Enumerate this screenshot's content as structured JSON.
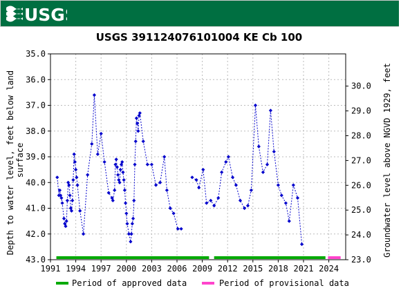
{
  "header": {
    "logo_text": "USGS",
    "bg_color": "#006f41"
  },
  "chart_data": {
    "type": "scatter",
    "title": "USGS 391124076101004 KE Cb 100",
    "ylabel": "Depth to water level, feet below land surface",
    "ylabel_lines": [
      "Depth to water level, feet below land",
      "surface"
    ],
    "y2label": "Groundwater level above NGVD 1929, feet",
    "ylim": [
      35.0,
      43.0
    ],
    "y_inverted": true,
    "y2lim": [
      31.3,
      23.0
    ],
    "xlim": [
      1991.0,
      2026.0
    ],
    "x_ticks": [
      "1991",
      "1994",
      "1997",
      "2000",
      "2003",
      "2006",
      "2009",
      "2012",
      "2015",
      "2018",
      "2021",
      "2024"
    ],
    "y_ticks": [
      "35.0",
      "36.0",
      "37.0",
      "38.0",
      "39.0",
      "40.0",
      "41.0",
      "42.0",
      "43.0"
    ],
    "y2_ticks": [
      "30.0",
      "29.0",
      "28.0",
      "27.0",
      "26.0",
      "25.0",
      "24.0",
      "23.0"
    ],
    "grid": true,
    "series": [
      {
        "color": "#0000cc",
        "segments": [
          [
            [
              1991.8,
              39.8
            ],
            [
              1992.0,
              40.5
            ],
            [
              1992.1,
              40.3
            ],
            [
              1992.2,
              40.5
            ],
            [
              1992.3,
              40.6
            ],
            [
              1992.4,
              40.8
            ],
            [
              1992.6,
              41.4
            ],
            [
              1992.7,
              41.6
            ],
            [
              1992.8,
              41.7
            ],
            [
              1992.9,
              41.5
            ],
            [
              1993.0,
              40.7
            ],
            [
              1993.1,
              40.0
            ],
            [
              1993.2,
              40.1
            ],
            [
              1993.3,
              40.5
            ],
            [
              1993.4,
              41.0
            ],
            [
              1993.5,
              41.1
            ],
            [
              1993.6,
              40.7
            ],
            [
              1993.7,
              39.9
            ],
            [
              1993.8,
              38.9
            ],
            [
              1993.9,
              39.2
            ],
            [
              1994.0,
              39.5
            ],
            [
              1994.1,
              39.8
            ],
            [
              1994.2,
              40.1
            ],
            [
              1994.5,
              41.1
            ],
            [
              1994.9,
              42.0
            ],
            [
              1995.4,
              39.7
            ],
            [
              1995.9,
              38.5
            ],
            [
              1996.2,
              36.6
            ],
            [
              1996.6,
              38.9
            ],
            [
              1997.0,
              38.1
            ],
            [
              1997.4,
              39.2
            ],
            [
              1997.9,
              40.4
            ],
            [
              1998.3,
              40.6
            ],
            [
              1998.4,
              40.7
            ],
            [
              1998.6,
              40.3
            ],
            [
              1998.7,
              39.3
            ],
            [
              1998.8,
              39.1
            ],
            [
              1998.9,
              39.4
            ],
            [
              1999.0,
              39.7
            ],
            [
              1999.1,
              39.9
            ],
            [
              1999.2,
              40.0
            ],
            [
              1999.3,
              39.5
            ],
            [
              1999.4,
              39.3
            ],
            [
              1999.5,
              39.2
            ],
            [
              1999.6,
              39.6
            ],
            [
              1999.7,
              39.9
            ],
            [
              1999.8,
              40.3
            ],
            [
              1999.9,
              40.8
            ],
            [
              2000.0,
              41.2
            ],
            [
              2000.1,
              41.6
            ],
            [
              2000.3,
              42.0
            ],
            [
              2000.5,
              42.3
            ],
            [
              2000.6,
              42.0
            ],
            [
              2000.7,
              41.6
            ],
            [
              2000.8,
              41.4
            ],
            [
              2000.9,
              40.7
            ],
            [
              2001.0,
              39.3
            ],
            [
              2001.1,
              38.4
            ],
            [
              2001.2,
              37.5
            ],
            [
              2001.3,
              37.7
            ],
            [
              2001.4,
              38.0
            ],
            [
              2001.5,
              37.4
            ],
            [
              2001.6,
              37.3
            ],
            [
              2002.0,
              38.4
            ],
            [
              2002.5,
              39.3
            ],
            [
              2003.0,
              39.3
            ],
            [
              2003.5,
              40.1
            ],
            [
              2004.0,
              40.0
            ],
            [
              2004.5,
              39.0
            ],
            [
              2004.8,
              40.3
            ],
            [
              2005.2,
              41.0
            ],
            [
              2005.6,
              41.2
            ],
            [
              2006.1,
              41.8
            ],
            [
              2006.5,
              41.8
            ]
          ],
          [
            [
              2007.8,
              39.8
            ],
            [
              2008.3,
              39.9
            ],
            [
              2008.6,
              40.2
            ],
            [
              2009.1,
              39.5
            ],
            [
              2009.5,
              40.8
            ],
            [
              2010.0,
              40.7
            ],
            [
              2010.4,
              40.9
            ],
            [
              2010.9,
              40.6
            ],
            [
              2011.3,
              39.6
            ],
            [
              2011.8,
              39.2
            ],
            [
              2012.1,
              39.0
            ],
            [
              2012.6,
              39.8
            ],
            [
              2013.0,
              40.1
            ],
            [
              2013.5,
              40.7
            ],
            [
              2014.0,
              41.0
            ],
            [
              2014.4,
              40.9
            ],
            [
              2014.8,
              40.3
            ],
            [
              2015.3,
              37.0
            ],
            [
              2015.7,
              38.6
            ],
            [
              2016.2,
              39.6
            ],
            [
              2016.7,
              39.3
            ],
            [
              2017.1,
              37.2
            ],
            [
              2017.5,
              38.8
            ],
            [
              2018.0,
              40.1
            ],
            [
              2018.4,
              40.5
            ],
            [
              2018.9,
              40.8
            ],
            [
              2019.3,
              41.5
            ],
            [
              2019.8,
              40.1
            ],
            [
              2020.3,
              40.6
            ],
            [
              2020.8,
              42.4
            ]
          ]
        ]
      }
    ],
    "approved_bar": {
      "segments": [
        [
          1991.7,
          2009.8
        ],
        [
          2010.4,
          2023.6
        ]
      ],
      "color": "#00aa00"
    },
    "provisional_bar": {
      "segments": [
        [
          2023.9,
          2025.4
        ]
      ],
      "color": "#ff44cc"
    },
    "legend_position": "bottom",
    "legend": [
      {
        "label": "Period of approved data",
        "color": "#00aa00"
      },
      {
        "label": "Period of provisional data",
        "color": "#ff44cc"
      }
    ]
  }
}
